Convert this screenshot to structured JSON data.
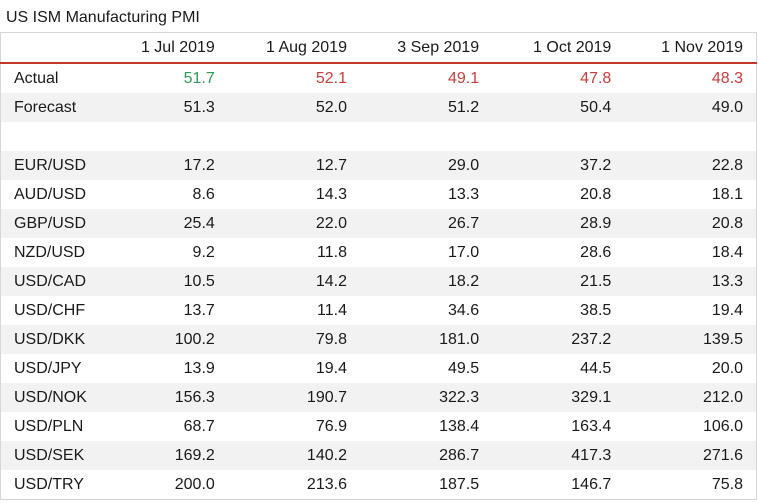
{
  "title": "US ISM Manufacturing PMI",
  "colors": {
    "positive": "#2e9b5a",
    "negative": "#d03b3b",
    "header_rule": "#c0392b",
    "stripe": "#f2f2f2"
  },
  "dates": [
    "1 Jul 2019",
    "1 Aug 2019",
    "3 Sep 2019",
    "1 Oct 2019",
    "1 Nov 2019"
  ],
  "actual": {
    "label": "Actual",
    "values": [
      "51.7",
      "52.1",
      "49.1",
      "47.8",
      "48.3"
    ],
    "directions": [
      "up",
      "down",
      "down",
      "down",
      "down"
    ]
  },
  "forecast": {
    "label": "Forecast",
    "values": [
      "51.3",
      "52.0",
      "51.2",
      "50.4",
      "49.0"
    ]
  },
  "pairs": [
    {
      "name": "EUR/USD",
      "values": [
        "17.2",
        "12.7",
        "29.0",
        "37.2",
        "22.8"
      ]
    },
    {
      "name": "AUD/USD",
      "values": [
        "8.6",
        "14.3",
        "13.3",
        "20.8",
        "18.1"
      ]
    },
    {
      "name": "GBP/USD",
      "values": [
        "25.4",
        "22.0",
        "26.7",
        "28.9",
        "20.8"
      ]
    },
    {
      "name": "NZD/USD",
      "values": [
        "9.2",
        "11.8",
        "17.0",
        "28.6",
        "18.4"
      ]
    },
    {
      "name": "USD/CAD",
      "values": [
        "10.5",
        "14.2",
        "18.2",
        "21.5",
        "13.3"
      ]
    },
    {
      "name": "USD/CHF",
      "values": [
        "13.7",
        "11.4",
        "34.6",
        "38.5",
        "19.4"
      ]
    },
    {
      "name": "USD/DKK",
      "values": [
        "100.2",
        "79.8",
        "181.0",
        "237.2",
        "139.5"
      ]
    },
    {
      "name": "USD/JPY",
      "values": [
        "13.9",
        "19.4",
        "49.5",
        "44.5",
        "20.0"
      ]
    },
    {
      "name": "USD/NOK",
      "values": [
        "156.3",
        "190.7",
        "322.3",
        "329.1",
        "212.0"
      ]
    },
    {
      "name": "USD/PLN",
      "values": [
        "68.7",
        "76.9",
        "138.4",
        "163.4",
        "106.0"
      ]
    },
    {
      "name": "USD/SEK",
      "values": [
        "169.2",
        "140.2",
        "286.7",
        "417.3",
        "271.6"
      ]
    },
    {
      "name": "USD/TRY",
      "values": [
        "200.0",
        "213.6",
        "187.5",
        "146.7",
        "75.8"
      ]
    }
  ]
}
